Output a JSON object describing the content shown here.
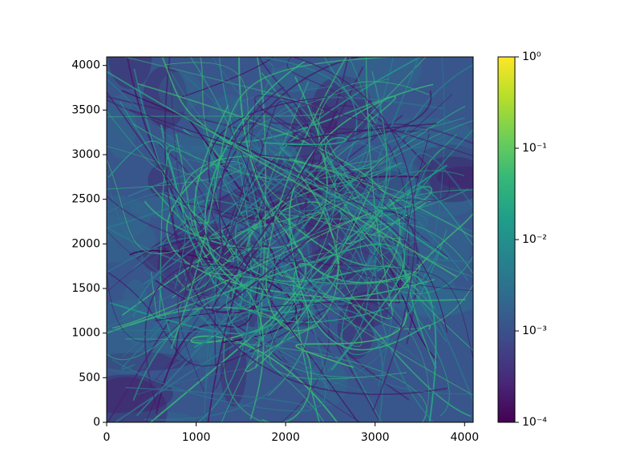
{
  "chart_data": {
    "type": "image",
    "xlim": [
      0,
      4096
    ],
    "ylim": [
      0,
      4096
    ],
    "xticks": [
      0,
      1000,
      2000,
      3000,
      4000
    ],
    "yticks": [
      0,
      500,
      1000,
      1500,
      2000,
      2500,
      3000,
      3500,
      4000
    ],
    "cmap": "viridis",
    "colorbar": {
      "scale": "log",
      "lim": [
        0.0001,
        1
      ],
      "ticks": [
        {
          "value": 0.0001,
          "label": "10⁻⁴"
        },
        {
          "value": 0.001,
          "label": "10⁻³"
        },
        {
          "value": 0.01,
          "label": "10⁻²"
        },
        {
          "value": 0.1,
          "label": "10⁻¹"
        },
        {
          "value": 1,
          "label": "10⁰"
        }
      ]
    }
  }
}
